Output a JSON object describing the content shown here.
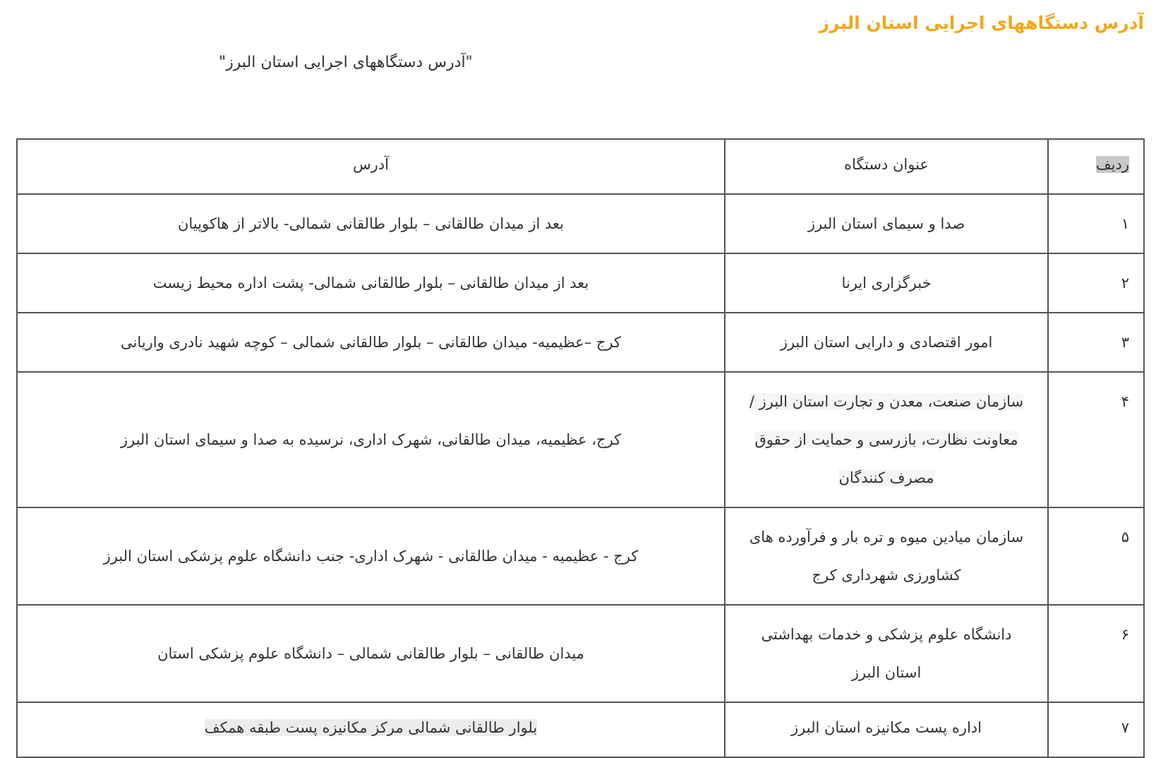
{
  "page": {
    "title": "آدرس دستگاههای اجرایی استان البرز",
    "subtitle": "\"آدرس دستگاههای اجرایی استان البرز\""
  },
  "table": {
    "headers": {
      "row": "ردیف",
      "org": "عنوان دستگاه",
      "address": "آدرس"
    },
    "rows": [
      {
        "num": "۱",
        "org": [
          "صدا و سیمای استان البرز"
        ],
        "address": "بعد از میدان طالقانی – بلوار طالقانی شمالی- بالاتر از هاکوپیان"
      },
      {
        "num": "۲",
        "org": [
          "خبرگزاری ایرنا"
        ],
        "address": "بعد از میدان طالقانی – بلوار طالقانی شمالی- پشت اداره محیط زیست"
      },
      {
        "num": "۳",
        "org": [
          "امور اقتصادی و دارایی استان البرز"
        ],
        "address": "کرج –عظیمیه- میدان طالقانی – بلوار طالقانی شمالی – کوچه شهید نادری واریانی"
      },
      {
        "num": "۴",
        "org": [
          "سازمان صنعت، معدن و تجارت استان البرز /",
          "معاونت نظارت، بازرسی و حمایت از حقوق",
          "مصرف کنندگان"
        ],
        "address": "کرج، عظیمیه، میدان طالقانی، شهرک اداری، نرسیده به صدا و سیمای استان البرز"
      },
      {
        "num": "۵",
        "org": [
          "سازمان میادین میوه و تره بار و فرآورده های",
          "کشاورزی شهرداری کرج"
        ],
        "address": "کرج - عظیمیه - میدان طالقانی - شهرک اداری- جنب دانشگاه علوم پزشکی استان البرز"
      },
      {
        "num": "۶",
        "org": [
          "دانشگاه علوم پزشکی و خدمات بهداشتی",
          "استان البرز"
        ],
        "address": "میدان طالقانی – بلوار طالقانی شمالی – دانشگاه علوم پزشکی استان"
      },
      {
        "num": "۷",
        "org": [
          "اداره پست مکانیزه استان البرز"
        ],
        "address": "بلوار طالقانی شمالی مرکز مکانیزه پست طبقه همکف"
      }
    ]
  },
  "colors": {
    "title": "#f2a71b",
    "text": "#333333",
    "border": "#555555"
  }
}
